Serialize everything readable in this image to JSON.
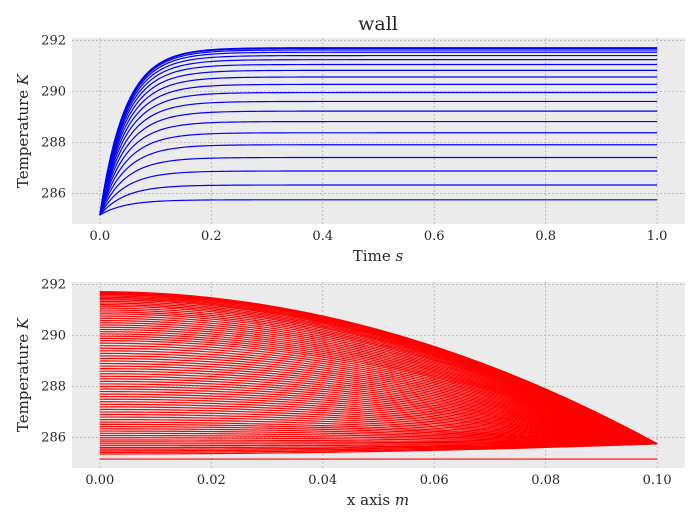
{
  "chart_data": [
    {
      "type": "line",
      "title": "wall",
      "xlabel": "Time",
      "xlabel_unit": "s",
      "ylabel": "Temperature",
      "ylabel_unit": "K",
      "xlim": [
        -0.05,
        1.05
      ],
      "ylim": [
        284.8,
        292.1
      ],
      "xticks": [
        0.0,
        0.2,
        0.4,
        0.6,
        0.8,
        1.0
      ],
      "xtick_labels": [
        "0.0",
        "0.2",
        "0.4",
        "0.6",
        "0.8",
        "1.0"
      ],
      "yticks": [
        286,
        288,
        290,
        292
      ],
      "ytick_labels": [
        "286",
        "288",
        "290",
        "292"
      ],
      "grid": true,
      "line_color": "#0000ff",
      "x_start": 0.0,
      "x_end": 1.0,
      "initial_value": 285.15,
      "time_constant": 0.045,
      "series_steady_values": [
        285.75,
        286.33,
        286.88,
        287.41,
        287.91,
        288.38,
        288.82,
        289.23,
        289.61,
        289.96,
        290.28,
        290.57,
        290.83,
        291.06,
        291.25,
        291.41,
        291.54,
        291.63,
        291.69,
        291.72
      ]
    },
    {
      "type": "line",
      "title": "",
      "xlabel": "x axis",
      "xlabel_unit": "m",
      "ylabel": "Temperature",
      "ylabel_unit": "K",
      "xlim": [
        -0.005,
        0.105
      ],
      "ylim": [
        284.8,
        292.1
      ],
      "xticks": [
        0.0,
        0.02,
        0.04,
        0.06,
        0.08,
        0.1
      ],
      "xtick_labels": [
        "0.00",
        "0.02",
        "0.04",
        "0.06",
        "0.08",
        "0.10"
      ],
      "yticks": [
        286,
        288,
        290,
        292
      ],
      "ytick_labels": [
        "286",
        "288",
        "290",
        "292"
      ],
      "grid": true,
      "line_color": "#ff0000",
      "x_start": 0.0,
      "x_end": 0.1,
      "fixed_end_value": 285.75,
      "series_initial_value": 285.15,
      "series_max_values": [
        285.35,
        285.6,
        285.9,
        286.25,
        286.6,
        287.0,
        287.4,
        287.8,
        288.2,
        288.6,
        289.0,
        289.4,
        289.8,
        290.15,
        290.5,
        290.85,
        291.15,
        291.4,
        291.6,
        291.72
      ]
    }
  ],
  "colors": {
    "axes_background": "#ebebeb",
    "grid": "#b2b2b2"
  }
}
